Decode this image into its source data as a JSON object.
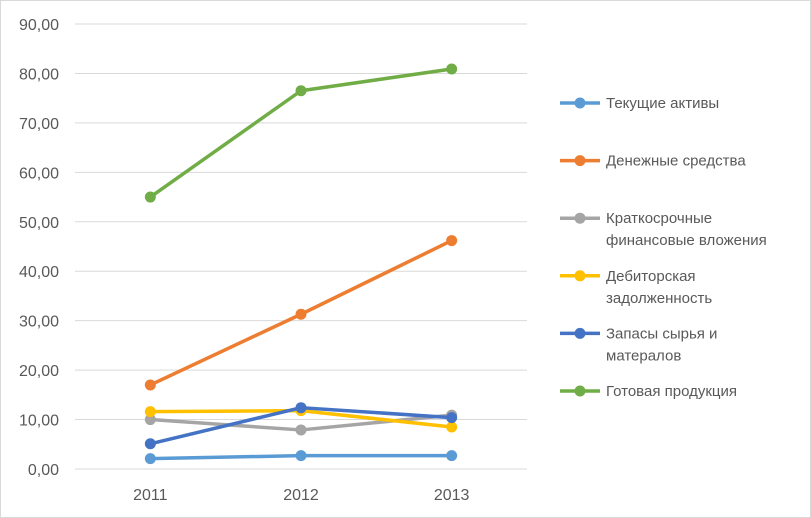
{
  "chart_data": {
    "type": "line",
    "title": "",
    "xlabel": "",
    "ylabel": "",
    "categories": [
      "2011",
      "2012",
      "2013"
    ],
    "y_ticks": [
      "0,00",
      "10,00",
      "20,00",
      "30,00",
      "40,00",
      "50,00",
      "60,00",
      "70,00",
      "80,00",
      "90,00"
    ],
    "ylim": [
      0,
      90
    ],
    "grid": "horizontal",
    "legend_position": "right",
    "series": [
      {
        "name": "Текущие активы",
        "name_lines": [
          "Текущие активы"
        ],
        "color": "#5b9bd5",
        "values": [
          2.1,
          2.7,
          2.7
        ]
      },
      {
        "name": "Денежные средства",
        "name_lines": [
          "Денежные средства"
        ],
        "color": "#ed7d31",
        "values": [
          17.0,
          31.3,
          46.2
        ]
      },
      {
        "name": " Краткосрочные финансовые вложения",
        "name_lines": [
          " Краткосрочные",
          "финансовые вложения"
        ],
        "color": "#a5a5a5",
        "values": [
          10.0,
          7.9,
          10.9
        ]
      },
      {
        "name": "Дебиторская задолженность",
        "name_lines": [
          "Дебиторская",
          "задолженность"
        ],
        "color": "#ffc000",
        "values": [
          11.6,
          11.8,
          8.5
        ]
      },
      {
        "name": " Запасы сырья и матералов",
        "name_lines": [
          " Запасы сырья и",
          "матералов"
        ],
        "color": "#4472c4",
        "values": [
          5.1,
          12.4,
          10.4
        ]
      },
      {
        "name": "Готовая продукция",
        "name_lines": [
          "Готовая продукция"
        ],
        "color": "#70ad47",
        "values": [
          55.0,
          76.5,
          80.9
        ]
      }
    ]
  }
}
